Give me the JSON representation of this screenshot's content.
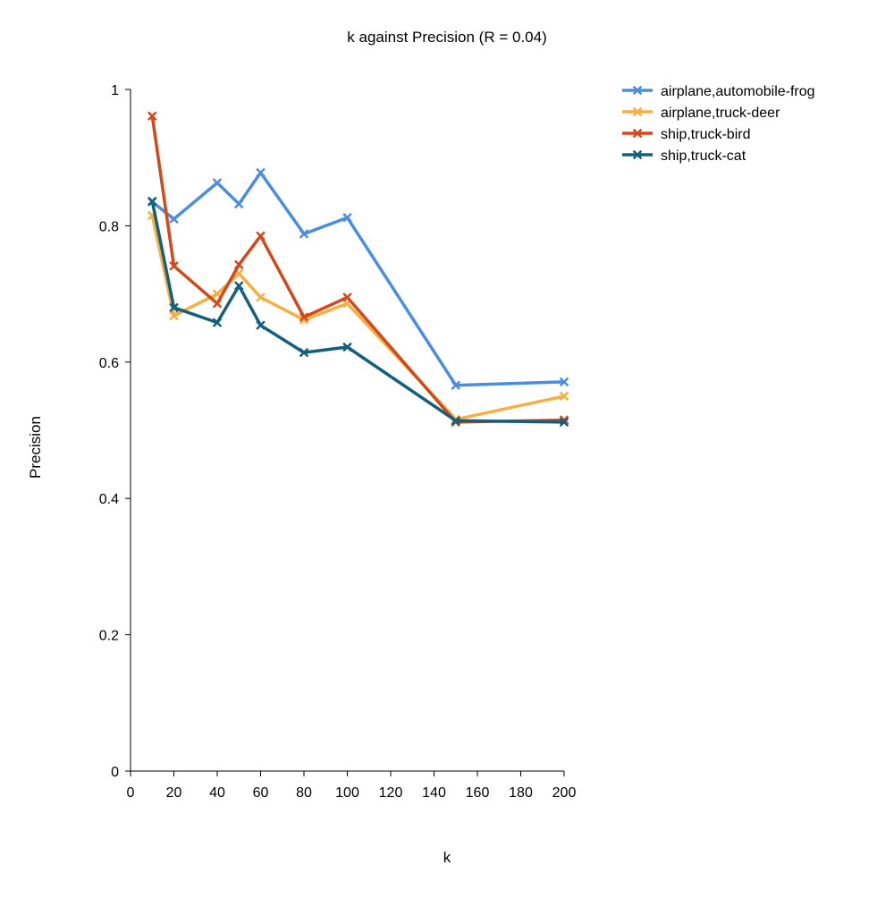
{
  "chart_data": {
    "type": "line",
    "title": "k against Precision (R = 0.04)",
    "xlabel": "k",
    "ylabel": "Precision",
    "xlim": [
      0,
      200
    ],
    "ylim": [
      0,
      1
    ],
    "xticks": [
      0,
      20,
      40,
      60,
      80,
      100,
      120,
      140,
      160,
      180,
      200
    ],
    "xtick_labels": [
      "0",
      "20",
      "40",
      "60",
      "80",
      "100",
      "120",
      "140",
      "160",
      "180",
      "200"
    ],
    "yticks": [
      0,
      0.2,
      0.4,
      0.6,
      0.8,
      1
    ],
    "ytick_labels": [
      "0",
      "0.2",
      "0.4",
      "0.6",
      "0.8",
      "1"
    ],
    "grid": false,
    "legend_position": "top-right",
    "x": [
      10,
      20,
      40,
      50,
      60,
      80,
      100,
      150,
      200
    ],
    "series": [
      {
        "name": "airplane,automobile-frog",
        "color": "#4a8ee0",
        "values": [
          0.835,
          0.81,
          0.863,
          0.832,
          0.878,
          0.788,
          0.812,
          0.566,
          0.571
        ]
      },
      {
        "name": "airplane,truck-deer",
        "color": "#f5b041",
        "values": [
          0.815,
          0.668,
          0.7,
          0.73,
          0.695,
          0.662,
          0.686,
          0.516,
          0.55
        ]
      },
      {
        "name": "ship,truck-bird",
        "color": "#d4491c",
        "values": [
          0.961,
          0.741,
          0.686,
          0.743,
          0.785,
          0.666,
          0.695,
          0.512,
          0.515
        ]
      },
      {
        "name": "ship,truck-cat",
        "color": "#13607e",
        "values": [
          0.836,
          0.68,
          0.658,
          0.712,
          0.654,
          0.614,
          0.622,
          0.514,
          0.512
        ]
      }
    ]
  }
}
